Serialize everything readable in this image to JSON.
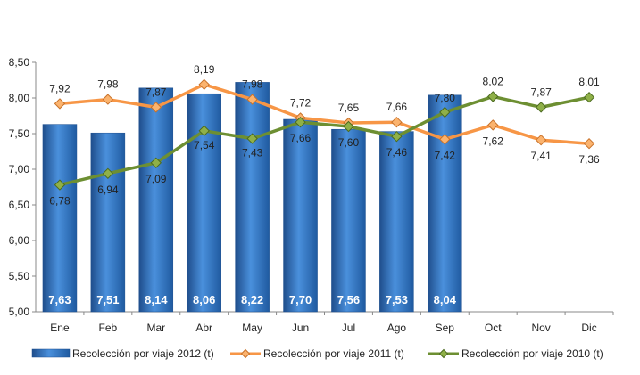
{
  "chart_data": {
    "type": "bar",
    "categories": [
      "Ene",
      "Feb",
      "Mar",
      "Abr",
      "May",
      "Jun",
      "Jul",
      "Ago",
      "Sep",
      "Oct",
      "Nov",
      "Dic"
    ],
    "ylim": [
      5.0,
      8.5
    ],
    "yticks": [
      "5,00",
      "5,50",
      "6,00",
      "6,50",
      "7,00",
      "7,50",
      "8,00",
      "8,50"
    ],
    "grid": false,
    "legend_position": "bottom",
    "series": [
      {
        "name": "Recolección por viaje 2012 (t)",
        "type": "bar",
        "color": "#2f6fbf",
        "values": [
          7.63,
          7.51,
          8.14,
          8.06,
          8.22,
          7.7,
          7.56,
          7.53,
          8.04,
          null,
          null,
          null
        ],
        "labels": [
          "7,63",
          "7,51",
          "8,14",
          "8,06",
          "8,22",
          "7,70",
          "7,56",
          "7,53",
          "8,04",
          "",
          "",
          ""
        ]
      },
      {
        "name": "Recolección por viaje 2011 (t)",
        "type": "line",
        "color": "#f79646",
        "values": [
          7.92,
          7.98,
          7.87,
          8.19,
          7.98,
          7.72,
          7.65,
          7.66,
          7.42,
          7.62,
          7.41,
          7.36
        ],
        "labels": [
          "7,92",
          "7,98",
          "7,87",
          "8,19",
          "7,98",
          "7,72",
          "7,65",
          "7,66",
          "7,42",
          "7,62",
          "7,41",
          "7,36"
        ]
      },
      {
        "name": "Recolección por viaje 2010 (t)",
        "type": "line",
        "color": "#6d8f32",
        "values": [
          6.78,
          6.94,
          7.09,
          7.54,
          7.43,
          7.66,
          7.6,
          7.46,
          7.8,
          8.02,
          7.87,
          8.01
        ],
        "labels": [
          "6,78",
          "6,94",
          "7,09",
          "7,54",
          "7,43",
          "7,66",
          "7,60",
          "7,46",
          "7,80",
          "8,02",
          "7,87",
          "8,01"
        ]
      }
    ]
  }
}
